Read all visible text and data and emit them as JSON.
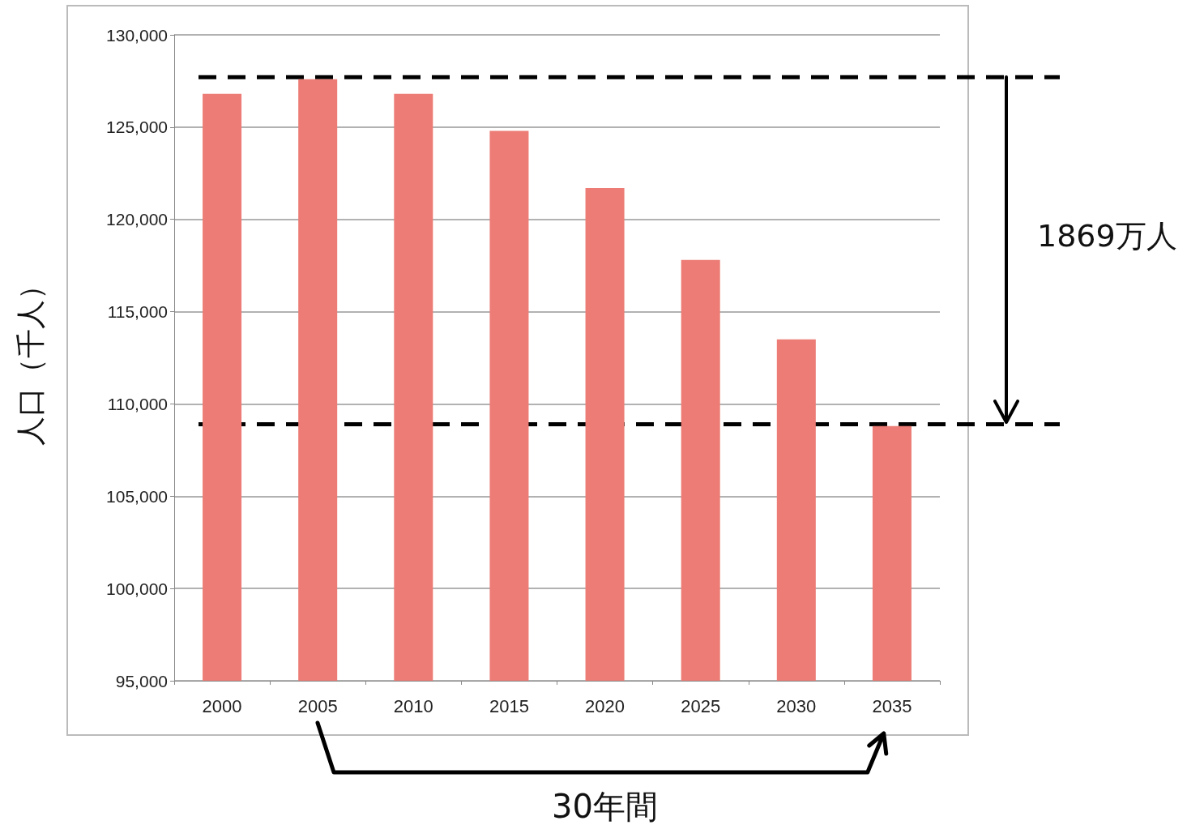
{
  "chart_data": {
    "type": "bar",
    "ylabel": "人口（千人）",
    "categories": [
      "2000",
      "2005",
      "2010",
      "2015",
      "2020",
      "2025",
      "2030",
      "2035"
    ],
    "values": [
      126800,
      127600,
      126800,
      124800,
      121700,
      117800,
      113500,
      108800
    ],
    "color": "#ec7c75",
    "ylim": [
      95000,
      130000
    ],
    "yticks": [
      {
        "value": 95000,
        "label": "95,000"
      },
      {
        "value": 100000,
        "label": "100,000"
      },
      {
        "value": 105000,
        "label": "105,000"
      },
      {
        "value": 110000,
        "label": "110,000"
      },
      {
        "value": 115000,
        "label": "115,000"
      },
      {
        "value": 120000,
        "label": "120,000"
      },
      {
        "value": 125000,
        "label": "125,000"
      },
      {
        "value": 130000,
        "label": "130,000"
      }
    ],
    "grid": "y",
    "ref_lines": [
      {
        "axis": "y",
        "value": 127700,
        "label": null,
        "color": "#000000",
        "line_style": "dashed"
      },
      {
        "axis": "y",
        "value": 108900,
        "label": null,
        "color": "#000000",
        "line_style": "dashed"
      }
    ],
    "annotations": [
      "1869万人",
      "30年間"
    ]
  }
}
